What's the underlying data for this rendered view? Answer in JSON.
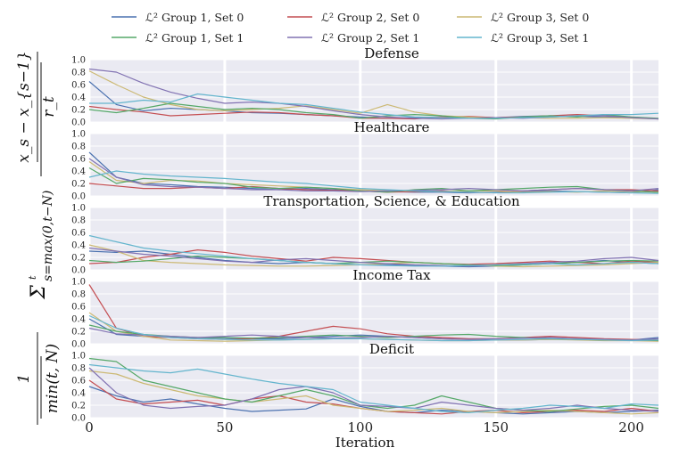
{
  "chart_data": {
    "type": "line",
    "xlabel": "Iteration",
    "ylabel_parts": {
      "frac1_num": "1",
      "frac1_den": "min(t, N)",
      "sum": "Σ",
      "sum_top": "t",
      "sum_bottom": "s=max(0,t−N)",
      "frac2_num": "x_s − x_{s−1}",
      "frac2_den": "r_t"
    },
    "xlim": [
      0,
      210
    ],
    "xticks": [
      0,
      50,
      100,
      150,
      200
    ],
    "xtick_labels": [
      "0",
      "50",
      "100",
      "150",
      "200"
    ],
    "ylim": [
      0,
      1.0
    ],
    "yticks": [
      0.0,
      0.2,
      0.4,
      0.6,
      0.8,
      1.0
    ],
    "ytick_labels": [
      "0.0",
      "0.2",
      "0.4",
      "0.6",
      "0.8",
      "1.0"
    ],
    "grid": true,
    "legend": {
      "placement": "top",
      "entries": [
        {
          "label": "ℒ² Group 1, Set 0",
          "color": "#4c72b0"
        },
        {
          "label": "ℒ² Group 2, Set 0",
          "color": "#c44e52"
        },
        {
          "label": "ℒ² Group 3, Set 0",
          "color": "#ccb974"
        },
        {
          "label": "ℒ² Group 1, Set 1",
          "color": "#55a868"
        },
        {
          "label": "ℒ² Group 2, Set 1",
          "color": "#8172b2"
        },
        {
          "label": "ℒ² Group 3, Set 1",
          "color": "#64b5cd"
        }
      ]
    },
    "panels": [
      {
        "title": "Defense",
        "x": [
          0,
          10,
          20,
          30,
          40,
          50,
          60,
          70,
          80,
          90,
          100,
          110,
          120,
          130,
          140,
          150,
          160,
          170,
          180,
          190,
          200,
          210
        ],
        "series": [
          {
            "name": "ℒ² Group 1, Set 0",
            "values": [
              0.65,
              0.28,
              0.18,
              0.22,
              0.2,
              0.18,
              0.15,
              0.14,
              0.12,
              0.1,
              0.08,
              0.06,
              0.07,
              0.08,
              0.08,
              0.07,
              0.09,
              0.1,
              0.09,
              0.08,
              0.07,
              0.05
            ]
          },
          {
            "name": "ℒ² Group 2, Set 0",
            "values": [
              0.25,
              0.2,
              0.16,
              0.1,
              0.12,
              0.14,
              0.16,
              0.15,
              0.12,
              0.1,
              0.06,
              0.06,
              0.05,
              0.08,
              0.09,
              0.07,
              0.08,
              0.1,
              0.12,
              0.1,
              0.08,
              0.05
            ]
          },
          {
            "name": "ℒ² Group 3, Set 0",
            "values": [
              0.82,
              0.6,
              0.4,
              0.28,
              0.2,
              0.18,
              0.2,
              0.22,
              0.26,
              0.2,
              0.14,
              0.28,
              0.16,
              0.1,
              0.08,
              0.06,
              0.07,
              0.06,
              0.06,
              0.07,
              0.06,
              0.05
            ]
          },
          {
            "name": "ℒ² Group 1, Set 1",
            "values": [
              0.2,
              0.15,
              0.22,
              0.3,
              0.25,
              0.2,
              0.22,
              0.2,
              0.15,
              0.12,
              0.06,
              0.1,
              0.12,
              0.1,
              0.06,
              0.05,
              0.08,
              0.1,
              0.08,
              0.12,
              0.08,
              0.06
            ]
          },
          {
            "name": "ℒ² Group 2, Set 1",
            "values": [
              0.85,
              0.8,
              0.62,
              0.48,
              0.38,
              0.3,
              0.32,
              0.3,
              0.25,
              0.18,
              0.12,
              0.08,
              0.06,
              0.05,
              0.06,
              0.07,
              0.06,
              0.08,
              0.1,
              0.1,
              0.07,
              0.05
            ]
          },
          {
            "name": "ℒ² Group 3, Set 1",
            "values": [
              0.3,
              0.3,
              0.35,
              0.32,
              0.45,
              0.4,
              0.35,
              0.3,
              0.28,
              0.22,
              0.16,
              0.12,
              0.08,
              0.07,
              0.06,
              0.06,
              0.07,
              0.08,
              0.1,
              0.12,
              0.12,
              0.14
            ]
          }
        ]
      },
      {
        "title": "Healthcare",
        "x": [
          0,
          10,
          20,
          30,
          40,
          50,
          60,
          70,
          80,
          90,
          100,
          110,
          120,
          130,
          140,
          150,
          160,
          170,
          180,
          190,
          200,
          210
        ],
        "series": [
          {
            "name": "ℒ² Group 1, Set 0",
            "values": [
              0.7,
              0.3,
              0.2,
              0.18,
              0.15,
              0.14,
              0.12,
              0.1,
              0.12,
              0.1,
              0.08,
              0.07,
              0.06,
              0.06,
              0.05,
              0.06,
              0.07,
              0.08,
              0.07,
              0.06,
              0.05,
              0.1
            ]
          },
          {
            "name": "ℒ² Group 2, Set 0",
            "values": [
              0.2,
              0.16,
              0.12,
              0.12,
              0.14,
              0.12,
              0.15,
              0.12,
              0.1,
              0.09,
              0.08,
              0.06,
              0.07,
              0.08,
              0.06,
              0.05,
              0.08,
              0.1,
              0.12,
              0.1,
              0.1,
              0.08
            ]
          },
          {
            "name": "ℒ² Group 3, Set 0",
            "values": [
              0.55,
              0.25,
              0.2,
              0.25,
              0.24,
              0.2,
              0.18,
              0.16,
              0.14,
              0.12,
              0.1,
              0.08,
              0.08,
              0.07,
              0.08,
              0.08,
              0.06,
              0.07,
              0.06,
              0.08,
              0.07,
              0.06
            ]
          },
          {
            "name": "ℒ² Group 1, Set 1",
            "values": [
              0.45,
              0.2,
              0.28,
              0.26,
              0.22,
              0.2,
              0.14,
              0.12,
              0.14,
              0.12,
              0.08,
              0.06,
              0.1,
              0.12,
              0.08,
              0.1,
              0.12,
              0.14,
              0.15,
              0.1,
              0.08,
              0.06
            ]
          },
          {
            "name": "ℒ² Group 2, Set 1",
            "values": [
              0.6,
              0.3,
              0.18,
              0.15,
              0.14,
              0.12,
              0.1,
              0.1,
              0.08,
              0.08,
              0.07,
              0.08,
              0.09,
              0.1,
              0.12,
              0.1,
              0.08,
              0.1,
              0.12,
              0.1,
              0.08,
              0.12
            ]
          },
          {
            "name": "ℒ² Group 3, Set 1",
            "values": [
              0.3,
              0.4,
              0.35,
              0.32,
              0.3,
              0.28,
              0.25,
              0.22,
              0.2,
              0.16,
              0.12,
              0.1,
              0.08,
              0.07,
              0.06,
              0.05,
              0.05,
              0.06,
              0.07,
              0.06,
              0.05,
              0.04
            ]
          }
        ]
      },
      {
        "title": "Transportation, Science, & Education",
        "x": [
          0,
          10,
          20,
          30,
          40,
          50,
          60,
          70,
          80,
          90,
          100,
          110,
          120,
          130,
          140,
          150,
          160,
          170,
          180,
          190,
          200,
          210
        ],
        "series": [
          {
            "name": "ℒ² Group 1, Set 0",
            "values": [
              0.3,
              0.28,
              0.3,
              0.25,
              0.2,
              0.15,
              0.12,
              0.1,
              0.12,
              0.1,
              0.08,
              0.08,
              0.07,
              0.06,
              0.05,
              0.06,
              0.08,
              0.1,
              0.12,
              0.15,
              0.12,
              0.1
            ]
          },
          {
            "name": "ℒ² Group 2, Set 0",
            "values": [
              0.1,
              0.12,
              0.2,
              0.25,
              0.32,
              0.28,
              0.22,
              0.18,
              0.14,
              0.2,
              0.18,
              0.15,
              0.12,
              0.1,
              0.09,
              0.1,
              0.12,
              0.14,
              0.12,
              0.1,
              0.14,
              0.12
            ]
          },
          {
            "name": "ℒ² Group 3, Set 0",
            "values": [
              0.4,
              0.3,
              0.15,
              0.12,
              0.1,
              0.08,
              0.07,
              0.06,
              0.06,
              0.07,
              0.08,
              0.1,
              0.12,
              0.1,
              0.08,
              0.06,
              0.05,
              0.06,
              0.07,
              0.08,
              0.1,
              0.12
            ]
          },
          {
            "name": "ℒ² Group 1, Set 1",
            "values": [
              0.15,
              0.12,
              0.14,
              0.18,
              0.22,
              0.2,
              0.18,
              0.15,
              0.12,
              0.1,
              0.12,
              0.14,
              0.12,
              0.1,
              0.08,
              0.07,
              0.08,
              0.1,
              0.12,
              0.14,
              0.15,
              0.14
            ]
          },
          {
            "name": "ℒ² Group 2, Set 1",
            "values": [
              0.35,
              0.3,
              0.25,
              0.22,
              0.18,
              0.14,
              0.12,
              0.16,
              0.18,
              0.15,
              0.12,
              0.1,
              0.08,
              0.07,
              0.06,
              0.08,
              0.1,
              0.12,
              0.14,
              0.18,
              0.2,
              0.15
            ]
          },
          {
            "name": "ℒ² Group 3, Set 1",
            "values": [
              0.55,
              0.45,
              0.35,
              0.3,
              0.26,
              0.22,
              0.18,
              0.15,
              0.12,
              0.1,
              0.08,
              0.07,
              0.06,
              0.06,
              0.07,
              0.08,
              0.09,
              0.1,
              0.08,
              0.1,
              0.12,
              0.1
            ]
          }
        ]
      },
      {
        "title": "Income Tax",
        "x": [
          0,
          10,
          20,
          30,
          40,
          50,
          60,
          70,
          80,
          90,
          100,
          110,
          120,
          130,
          140,
          150,
          160,
          170,
          180,
          190,
          200,
          210
        ],
        "series": [
          {
            "name": "ℒ² Group 1, Set 0",
            "values": [
              0.4,
              0.15,
              0.12,
              0.1,
              0.1,
              0.09,
              0.08,
              0.08,
              0.1,
              0.12,
              0.14,
              0.12,
              0.1,
              0.08,
              0.07,
              0.06,
              0.06,
              0.07,
              0.08,
              0.07,
              0.06,
              0.1
            ]
          },
          {
            "name": "ℒ² Group 2, Set 0",
            "values": [
              0.95,
              0.25,
              0.12,
              0.1,
              0.08,
              0.07,
              0.08,
              0.12,
              0.2,
              0.28,
              0.24,
              0.16,
              0.12,
              0.1,
              0.08,
              0.08,
              0.1,
              0.12,
              0.1,
              0.08,
              0.07,
              0.06
            ]
          },
          {
            "name": "ℒ² Group 3, Set 0",
            "values": [
              0.5,
              0.2,
              0.12,
              0.06,
              0.05,
              0.04,
              0.05,
              0.06,
              0.07,
              0.08,
              0.08,
              0.07,
              0.06,
              0.05,
              0.05,
              0.06,
              0.06,
              0.07,
              0.06,
              0.05,
              0.05,
              0.04
            ]
          },
          {
            "name": "ℒ² Group 1, Set 1",
            "values": [
              0.3,
              0.2,
              0.15,
              0.12,
              0.1,
              0.1,
              0.09,
              0.1,
              0.12,
              0.14,
              0.12,
              0.1,
              0.12,
              0.14,
              0.15,
              0.12,
              0.1,
              0.08,
              0.07,
              0.06,
              0.06,
              0.05
            ]
          },
          {
            "name": "ℒ² Group 2, Set 1",
            "values": [
              0.25,
              0.16,
              0.14,
              0.12,
              0.1,
              0.12,
              0.14,
              0.12,
              0.1,
              0.09,
              0.1,
              0.12,
              0.1,
              0.08,
              0.07,
              0.08,
              0.09,
              0.1,
              0.08,
              0.07,
              0.06,
              0.08
            ]
          },
          {
            "name": "ℒ² Group 3, Set 1",
            "values": [
              0.45,
              0.25,
              0.15,
              0.1,
              0.08,
              0.07,
              0.06,
              0.06,
              0.07,
              0.08,
              0.08,
              0.07,
              0.06,
              0.05,
              0.05,
              0.06,
              0.07,
              0.08,
              0.07,
              0.06,
              0.05,
              0.06
            ]
          }
        ]
      },
      {
        "title": "Deficit",
        "x": [
          0,
          10,
          20,
          30,
          40,
          50,
          60,
          70,
          80,
          90,
          100,
          110,
          120,
          130,
          140,
          150,
          160,
          170,
          180,
          190,
          200,
          210
        ],
        "series": [
          {
            "name": "ℒ² Group 1, Set 0",
            "values": [
              0.5,
              0.35,
              0.25,
              0.3,
              0.22,
              0.15,
              0.1,
              0.12,
              0.14,
              0.3,
              0.18,
              0.1,
              0.08,
              0.12,
              0.1,
              0.08,
              0.06,
              0.08,
              0.1,
              0.08,
              0.1,
              0.12
            ]
          },
          {
            "name": "ℒ² Group 2, Set 0",
            "values": [
              0.6,
              0.3,
              0.22,
              0.25,
              0.28,
              0.2,
              0.3,
              0.35,
              0.25,
              0.22,
              0.15,
              0.1,
              0.08,
              0.06,
              0.1,
              0.12,
              0.08,
              0.1,
              0.12,
              0.1,
              0.15,
              0.1
            ]
          },
          {
            "name": "ℒ² Group 3, Set 0",
            "values": [
              0.75,
              0.7,
              0.55,
              0.45,
              0.35,
              0.3,
              0.25,
              0.3,
              0.35,
              0.2,
              0.15,
              0.1,
              0.12,
              0.15,
              0.1,
              0.08,
              0.1,
              0.12,
              0.1,
              0.08,
              0.06,
              0.08
            ]
          },
          {
            "name": "ℒ² Group 1, Set 1",
            "values": [
              0.95,
              0.9,
              0.6,
              0.5,
              0.4,
              0.3,
              0.25,
              0.35,
              0.45,
              0.35,
              0.2,
              0.15,
              0.2,
              0.35,
              0.25,
              0.15,
              0.12,
              0.1,
              0.14,
              0.18,
              0.2,
              0.15
            ]
          },
          {
            "name": "ℒ² Group 2, Set 1",
            "values": [
              0.8,
              0.4,
              0.2,
              0.15,
              0.18,
              0.2,
              0.3,
              0.45,
              0.5,
              0.4,
              0.2,
              0.18,
              0.15,
              0.25,
              0.2,
              0.15,
              0.12,
              0.15,
              0.2,
              0.15,
              0.12,
              0.1
            ]
          },
          {
            "name": "ℒ² Group 3, Set 1",
            "values": [
              0.85,
              0.8,
              0.75,
              0.72,
              0.78,
              0.7,
              0.62,
              0.55,
              0.5,
              0.45,
              0.25,
              0.2,
              0.15,
              0.1,
              0.08,
              0.12,
              0.15,
              0.2,
              0.18,
              0.15,
              0.22,
              0.2
            ]
          }
        ]
      }
    ]
  }
}
